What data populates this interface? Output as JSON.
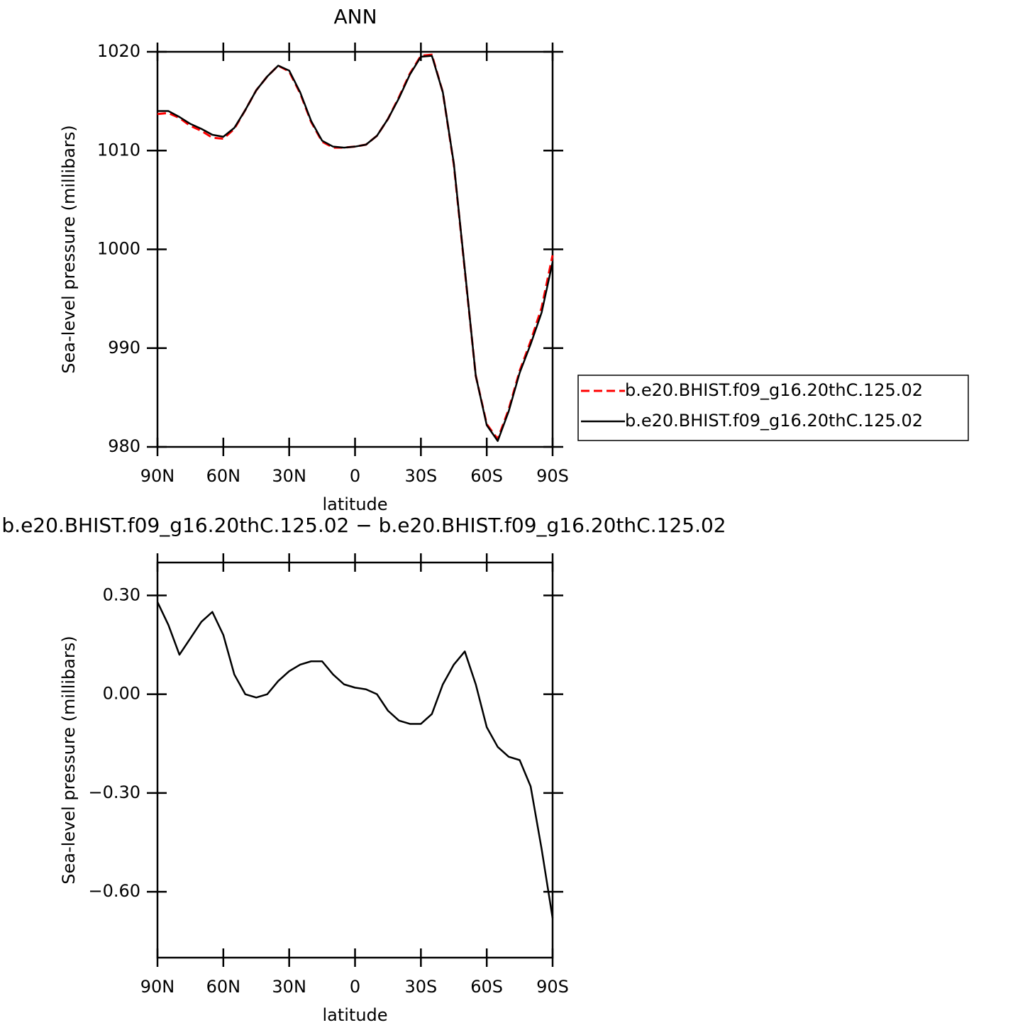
{
  "chart_data": [
    {
      "type": "line",
      "title": "ANN",
      "xlabel": "latitude",
      "ylabel": "Sea-level pressure (millibars)",
      "x": [
        90,
        85,
        80,
        75,
        70,
        65,
        60,
        55,
        50,
        45,
        40,
        35,
        30,
        25,
        20,
        15,
        10,
        5,
        0,
        -5,
        -10,
        -15,
        -20,
        -25,
        -30,
        -35,
        -40,
        -45,
        -50,
        -55,
        -60,
        -65,
        -70,
        -75,
        -80,
        -85,
        -90
      ],
      "series": [
        {
          "name": "b.e20.BHIST.f09_g16.20thC.125.02",
          "color": "#ff0000",
          "dash": true,
          "values": [
            1013.7,
            1013.8,
            1013.3,
            1012.5,
            1012.0,
            1011.3,
            1011.2,
            1012.2,
            1014.1,
            1016.1,
            1017.5,
            1018.6,
            1018.0,
            1015.8,
            1012.9,
            1010.9,
            1010.3,
            1010.3,
            1010.4,
            1010.6,
            1011.5,
            1013.2,
            1015.4,
            1017.8,
            1019.6,
            1019.7,
            1015.9,
            1008.6,
            997.9,
            987.2,
            982.3,
            980.8,
            983.8,
            987.7,
            990.7,
            994.1,
            999.4
          ]
        },
        {
          "name": "b.e20.BHIST.f09_g16.20thC.125.02",
          "color": "#000000",
          "dash": false,
          "values": [
            1014.0,
            1014.0,
            1013.4,
            1012.7,
            1012.2,
            1011.6,
            1011.4,
            1012.3,
            1014.1,
            1016.1,
            1017.5,
            1018.6,
            1018.1,
            1015.9,
            1013.0,
            1011.0,
            1010.4,
            1010.3,
            1010.4,
            1010.6,
            1011.5,
            1013.2,
            1015.3,
            1017.7,
            1019.5,
            1019.6,
            1015.9,
            1008.7,
            998.0,
            987.2,
            982.2,
            980.6,
            983.6,
            987.5,
            990.4,
            993.6,
            998.7
          ]
        }
      ],
      "xlim": [
        90,
        -90
      ],
      "xticks": [
        {
          "value": 90,
          "label": "90N"
        },
        {
          "value": 60,
          "label": "60N"
        },
        {
          "value": 30,
          "label": "30N"
        },
        0,
        {
          "value": -30,
          "label": "30S"
        },
        {
          "value": -60,
          "label": "60S"
        },
        {
          "value": -90,
          "label": "90S"
        }
      ],
      "ylim": [
        980,
        1020
      ],
      "yticks": [
        980,
        990,
        1000,
        1010,
        1020
      ],
      "legend": "outside-right"
    },
    {
      "type": "line",
      "title": "b.e20.BHIST.f09_g16.20thC.125.02 − b.e20.BHIST.f09_g16.20thC.125.02",
      "xlabel": "latitude",
      "ylabel": "Sea-level pressure (millibars)",
      "x": [
        90,
        85,
        80,
        75,
        70,
        65,
        60,
        55,
        50,
        45,
        40,
        35,
        30,
        25,
        20,
        15,
        10,
        5,
        0,
        -5,
        -10,
        -15,
        -20,
        -25,
        -30,
        -35,
        -40,
        -45,
        -50,
        -55,
        -60,
        -65,
        -70,
        -75,
        -80,
        -85,
        -90
      ],
      "series": [
        {
          "color": "#000000",
          "dash": false,
          "values": [
            0.28,
            0.21,
            0.12,
            0.17,
            0.22,
            0.25,
            0.18,
            0.06,
            0.0,
            -0.01,
            0.0,
            0.04,
            0.07,
            0.09,
            0.1,
            0.1,
            0.06,
            0.03,
            0.02,
            0.015,
            0.0,
            -0.05,
            -0.08,
            -0.09,
            -0.09,
            -0.06,
            0.03,
            0.09,
            0.13,
            0.03,
            -0.1,
            -0.16,
            -0.19,
            -0.2,
            -0.28,
            -0.47,
            -0.68
          ]
        }
      ],
      "xlim": [
        90,
        -90
      ],
      "xticks": [
        {
          "value": 90,
          "label": "90N"
        },
        {
          "value": 60,
          "label": "60N"
        },
        {
          "value": 30,
          "label": "30N"
        },
        0,
        {
          "value": -30,
          "label": "30S"
        },
        {
          "value": -60,
          "label": "60S"
        },
        {
          "value": -90,
          "label": "90S"
        }
      ],
      "ylim": [
        -0.8,
        0.4
      ],
      "yticks": [
        {
          "value": -0.6,
          "label": "−0.60"
        },
        {
          "value": -0.3,
          "label": "−0.30"
        },
        {
          "value": 0,
          "label": "0.00"
        },
        {
          "value": 0.3,
          "label": "0.30"
        }
      ]
    }
  ]
}
